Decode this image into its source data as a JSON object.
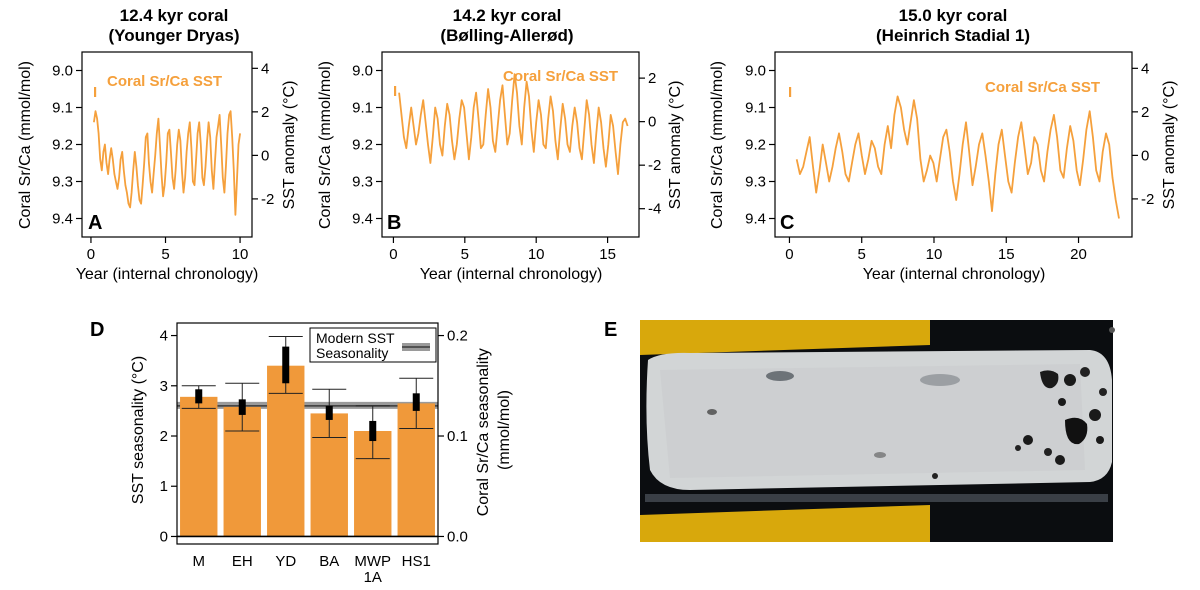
{
  "colors": {
    "orange": "#F5A03C",
    "bar": "#F0993A",
    "modern_band": "#777777"
  },
  "chart_data": [
    {
      "type": "line",
      "panel": "A",
      "title": [
        "12.4 kyr coral",
        "(Younger Dryas)"
      ],
      "xlabel": "Year (internal chronology)",
      "ylabel_left": "Coral Sr/Ca (mmol/mol)",
      "ylabel_right": "SST anomaly (°C)",
      "legend": "Coral Sr/Ca SST",
      "xlim": [
        -0.6,
        10.8
      ],
      "ylim_left": [
        9.45,
        8.95
      ],
      "ylim_right": [
        -3.75,
        4.75
      ],
      "xticks": [
        "0",
        "5",
        "10"
      ],
      "yticks_left": [
        "9.0",
        "9.1",
        "9.2",
        "9.3",
        "9.4"
      ],
      "yticks_right": [
        "4",
        "2",
        "0",
        "-2"
      ],
      "series": [
        {
          "x_start": 0.2,
          "x_end": 10.0,
          "y": [
            9.14,
            9.11,
            9.13,
            9.17,
            9.24,
            9.27,
            9.22,
            9.2,
            9.25,
            9.28,
            9.24,
            9.21,
            9.24,
            9.28,
            9.3,
            9.32,
            9.29,
            9.24,
            9.22,
            9.27,
            9.31,
            9.33,
            9.36,
            9.37,
            9.33,
            9.27,
            9.22,
            9.26,
            9.31,
            9.35,
            9.36,
            9.31,
            9.25,
            9.18,
            9.17,
            9.25,
            9.3,
            9.33,
            9.28,
            9.23,
            9.17,
            9.13,
            9.2,
            9.28,
            9.34,
            9.31,
            9.25,
            9.17,
            9.16,
            9.22,
            9.29,
            9.32,
            9.27,
            9.2,
            9.16,
            9.19,
            9.27,
            9.33,
            9.29,
            9.22,
            9.17,
            9.14,
            9.21,
            9.3,
            9.31,
            9.24,
            9.17,
            9.14,
            9.2,
            9.29,
            9.31,
            9.26,
            9.19,
            9.14,
            9.18,
            9.27,
            9.32,
            9.25,
            9.18,
            9.15,
            9.12,
            9.2,
            9.29,
            9.33,
            9.26,
            9.17,
            9.12,
            9.11,
            9.18,
            9.27,
            9.39,
            9.3,
            9.2,
            9.17
          ]
        }
      ]
    },
    {
      "type": "line",
      "panel": "B",
      "title": [
        "14.2 kyr coral",
        "(Bølling-Allerød)"
      ],
      "xlabel": "Year (internal chronology)",
      "ylabel_left": "Coral Sr/Ca (mmol/mol)",
      "ylabel_right": "SST anomaly (°C)",
      "legend": "Coral Sr/Ca SST",
      "xlim": [
        -0.8,
        17.2
      ],
      "ylim_left": [
        9.45,
        8.95
      ],
      "ylim_right": [
        -5.3,
        3.2
      ],
      "xticks": [
        "0",
        "5",
        "10",
        "15"
      ],
      "yticks_left": [
        "9.0",
        "9.1",
        "9.2",
        "9.3",
        "9.4"
      ],
      "yticks_right": [
        "2",
        "0",
        "-2",
        "-4"
      ],
      "series": [
        {
          "x_start": 0.4,
          "x_end": 16.4,
          "y": [
            9.06,
            9.12,
            9.18,
            9.21,
            9.15,
            9.1,
            9.15,
            9.2,
            9.17,
            9.12,
            9.08,
            9.14,
            9.2,
            9.25,
            9.18,
            9.1,
            9.13,
            9.2,
            9.23,
            9.15,
            9.09,
            9.12,
            9.19,
            9.24,
            9.2,
            9.13,
            9.08,
            9.1,
            9.17,
            9.24,
            9.18,
            9.1,
            9.06,
            9.13,
            9.21,
            9.2,
            9.12,
            9.05,
            9.1,
            9.19,
            9.22,
            9.15,
            9.08,
            9.04,
            9.12,
            9.2,
            9.17,
            9.08,
            9.01,
            9.06,
            9.15,
            9.2,
            9.1,
            9.03,
            9.07,
            9.16,
            9.22,
            9.14,
            9.08,
            9.12,
            9.2,
            9.21,
            9.13,
            9.07,
            9.11,
            9.19,
            9.24,
            9.16,
            9.09,
            9.13,
            9.2,
            9.22,
            9.15,
            9.1,
            9.14,
            9.21,
            9.24,
            9.16,
            9.08,
            9.12,
            9.2,
            9.25,
            9.17,
            9.1,
            9.14,
            9.21,
            9.26,
            9.2,
            9.12,
            9.15,
            9.22,
            9.28,
            9.2,
            9.14,
            9.13,
            9.15
          ]
        }
      ]
    },
    {
      "type": "line",
      "panel": "C",
      "title": [
        "15.0 kyr coral",
        "(Heinrich Stadial 1)"
      ],
      "xlabel": "Year (internal chronology)",
      "ylabel_left": "Coral Sr/Ca (mmol/mol)",
      "ylabel_right": "SST anomaly (°C)",
      "legend": "Coral Sr/Ca SST",
      "xlim": [
        -1.0,
        23.7
      ],
      "ylim_left": [
        9.45,
        8.95
      ],
      "ylim_right": [
        -3.75,
        4.75
      ],
      "xticks": [
        "0",
        "5",
        "10",
        "15",
        "20"
      ],
      "yticks_left": [
        "9.0",
        "9.1",
        "9.2",
        "9.3",
        "9.4"
      ],
      "yticks_right": [
        "4",
        "2",
        "0",
        "-2"
      ],
      "series": [
        {
          "x_start": 0.5,
          "x_end": 22.8,
          "y": [
            9.24,
            9.28,
            9.26,
            9.22,
            9.18,
            9.26,
            9.33,
            9.27,
            9.2,
            9.25,
            9.3,
            9.26,
            9.21,
            9.17,
            9.22,
            9.28,
            9.3,
            9.25,
            9.2,
            9.17,
            9.23,
            9.28,
            9.24,
            9.19,
            9.21,
            9.26,
            9.28,
            9.2,
            9.15,
            9.21,
            9.12,
            9.07,
            9.1,
            9.16,
            9.2,
            9.14,
            9.08,
            9.13,
            9.24,
            9.3,
            9.27,
            9.23,
            9.25,
            9.3,
            9.24,
            9.18,
            9.16,
            9.22,
            9.3,
            9.35,
            9.28,
            9.2,
            9.14,
            9.22,
            9.31,
            9.26,
            9.2,
            9.17,
            9.23,
            9.3,
            9.38,
            9.28,
            9.2,
            9.16,
            9.23,
            9.3,
            9.33,
            9.25,
            9.18,
            9.14,
            9.21,
            9.28,
            9.25,
            9.18,
            9.2,
            9.27,
            9.3,
            9.22,
            9.16,
            9.12,
            9.18,
            9.27,
            9.29,
            9.21,
            9.15,
            9.19,
            9.27,
            9.31,
            9.24,
            9.16,
            9.11,
            9.18,
            9.27,
            9.3,
            9.22,
            9.17,
            9.2,
            9.29,
            9.35,
            9.4
          ]
        }
      ]
    },
    {
      "type": "bar",
      "panel": "D",
      "categories": [
        "M",
        "EH",
        "YD",
        "BA",
        "MWP\n1A",
        "HS1"
      ],
      "values": [
        2.78,
        2.58,
        3.4,
        2.45,
        2.1,
        2.65
      ],
      "error_outer": [
        [
          2.55,
          3.0
        ],
        [
          2.1,
          3.05
        ],
        [
          2.85,
          3.98
        ],
        [
          1.97,
          2.93
        ],
        [
          1.55,
          2.6
        ],
        [
          2.15,
          3.15
        ]
      ],
      "error_inner": [
        [
          2.65,
          2.93
        ],
        [
          2.42,
          2.73
        ],
        [
          3.05,
          3.78
        ],
        [
          2.32,
          2.6
        ],
        [
          1.9,
          2.3
        ],
        [
          2.5,
          2.85
        ]
      ],
      "ylabel_left": "SST seasonality (°C)",
      "ylabel_right": "Coral Sr/Ca seasonality\n(mmol/mol)",
      "ylim": [
        -0.15,
        4.25
      ],
      "yticks_left": [
        "0",
        "1",
        "2",
        "3",
        "4"
      ],
      "yticks_right": [
        "0.0",
        "0.1",
        "0.2"
      ],
      "modern_sst_seasonality": 2.6,
      "legend": [
        "Modern SST",
        "Seasonality"
      ]
    }
  ],
  "photo": {
    "panel": "E"
  }
}
